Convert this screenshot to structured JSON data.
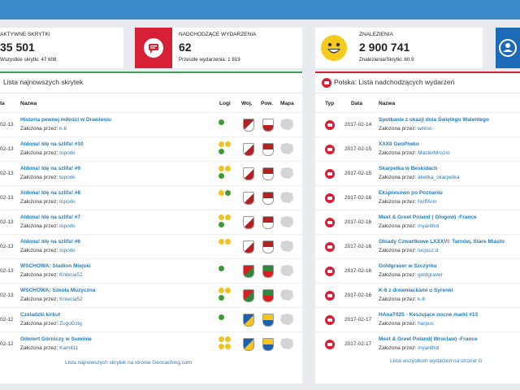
{
  "stats": [
    {
      "label": "AKTYWNE SKRYTKI",
      "value": "35 501",
      "sub": "Wszystkie skrytki: 47 608",
      "icon": "cache-icon",
      "color": "#ffffff"
    },
    {
      "label": "NADCHODZĄCE WYDARZENIA",
      "value": "62",
      "sub": "Przeszłe wydarzenia: 1 819",
      "icon": "event-icon",
      "color": "#d71f35"
    },
    {
      "label": "ZNALEZIENIA",
      "value": "2 900 741",
      "sub": "Znalezienia/Skrytki: 60.9",
      "icon": "smiley-icon",
      "color": "#ffffff"
    },
    {
      "label": "",
      "value": "",
      "sub": "",
      "icon": "user-icon",
      "color": "#1d6ab8"
    }
  ],
  "left_panel": {
    "title": "Lista najnowszych skrytek",
    "headers": [
      "ta",
      "Nazwa",
      "Logi",
      "Woj.",
      "Pow.",
      "Mapa"
    ],
    "rows": [
      {
        "date": "02-13",
        "name": "Historia pewnej miłości w Drawieniu",
        "owner": "k-6",
        "logs": "1 found"
      },
      {
        "date": "02-13",
        "name": "Aldona! Idę na szlifa! #10",
        "owner": "toporki",
        "logs": "2 smile + found"
      },
      {
        "date": "02-13",
        "name": "Aldona! Idę na szlifa! #9",
        "owner": "toporki",
        "logs": "2 smile + found"
      },
      {
        "date": "02-13",
        "name": "Aldona! Idę na szlifa! #8",
        "owner": "toporki",
        "logs": "smile + found"
      },
      {
        "date": "02-13",
        "name": "Aldona! Idę na szlifa! #7",
        "owner": "toporki",
        "logs": "2 smile + found"
      },
      {
        "date": "02-13",
        "name": "Aldona! Idę na szlifa! #6",
        "owner": "toporki",
        "logs": "2 smile"
      },
      {
        "date": "02-13",
        "name": "WSCHOWA: Stadion Miejski",
        "owner": "Kniecia52",
        "logs": "found"
      },
      {
        "date": "02-13",
        "name": "WSCHOWA: Szkoła Muzyczna",
        "owner": "Kniecia52",
        "logs": "2 smile + found"
      },
      {
        "date": "02-12",
        "name": "Czeladzki kirkut",
        "owner": "ZugoDzig",
        "logs": "found"
      },
      {
        "date": "02-12",
        "name": "Odwiert Górniczy w Suminie",
        "owner": "Kamil11",
        "logs": "2 smile + 2 smile"
      }
    ],
    "owner_prefix": "Założona przez: ",
    "footer": "Lista najnowszych skrytek na stronie Geocaching.com"
  },
  "right_panel": {
    "title": "Polska: Lista nadchodzących wydarzeń",
    "headers": [
      "Typ",
      "Data",
      "Nazwa"
    ],
    "rows": [
      {
        "date": "2017-02-14",
        "name": "Spotkanie z okazji dnia Świętego Walentego",
        "owner": "wiliino"
      },
      {
        "date": "2017-02-15",
        "name": "XXXII GeoPiwko",
        "owner": "MasterMrozio"
      },
      {
        "date": "2017-02-15",
        "name": "Skarpetka w Beskidach",
        "owner": "anetka_skarpetka"
      },
      {
        "date": "2017-02-16",
        "name": "Ekspresowo po Poznaniu",
        "owner": "NoffAnn"
      },
      {
        "date": "2017-02-16",
        "name": "Meet & Greet Poland ( Glogow) -France",
        "owner": "myanthol"
      },
      {
        "date": "2017-02-16",
        "name": "Obiady Czwartkowe LXXXVI: Tarnów, Stare Miasto",
        "owner": "lucjusz.d"
      },
      {
        "date": "2017-02-16",
        "name": "Goldgraver w Szczyrku",
        "owner": "goldgraver"
      },
      {
        "date": "2017-02-16",
        "name": "K-6 z drewniackami u Syrenki",
        "owner": "k-6"
      },
      {
        "date": "2017-02-17",
        "name": "HAnaT025 - Keszujące nocne marki #13",
        "owner": "harpus"
      },
      {
        "date": "2017-02-17",
        "name": "Meet & Greet Poland( Wroclaw) -France",
        "owner": "myanthol"
      }
    ],
    "owner_prefix": "Założona przez: ",
    "footer": "Lista wszystkich wydarzeń na stronie G"
  }
}
